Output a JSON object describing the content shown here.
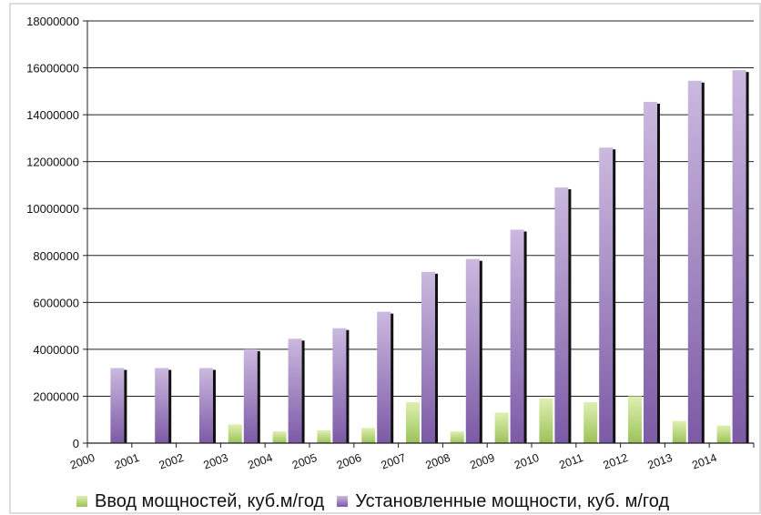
{
  "chart_data": {
    "type": "bar",
    "categories": [
      "2000",
      "2001",
      "2002",
      "2003",
      "2004",
      "2005",
      "2006",
      "2007",
      "2008",
      "2009",
      "2010",
      "2011",
      "2012",
      "2013",
      "2014"
    ],
    "series": [
      {
        "name": "Ввод мощностей, куб.м/год",
        "color": "#a8c86a",
        "values": [
          0,
          0,
          0,
          800000,
          500000,
          550000,
          650000,
          1750000,
          500000,
          1300000,
          1900000,
          1750000,
          2000000,
          950000,
          750000
        ]
      },
      {
        "name": "Установленные мощности, куб. м/год",
        "color": "#8c6eb0",
        "values": [
          3200000,
          3200000,
          3200000,
          4000000,
          4450000,
          4900000,
          5600000,
          7300000,
          7850000,
          9100000,
          10900000,
          12600000,
          14550000,
          15450000,
          15900000
        ]
      }
    ],
    "ylim": [
      0,
      18000000
    ],
    "yticks": [
      "0",
      "2000000",
      "4000000",
      "6000000",
      "8000000",
      "10000000",
      "12000000",
      "14000000",
      "16000000",
      "18000000"
    ],
    "grid": true,
    "legend_position": "bottom"
  }
}
